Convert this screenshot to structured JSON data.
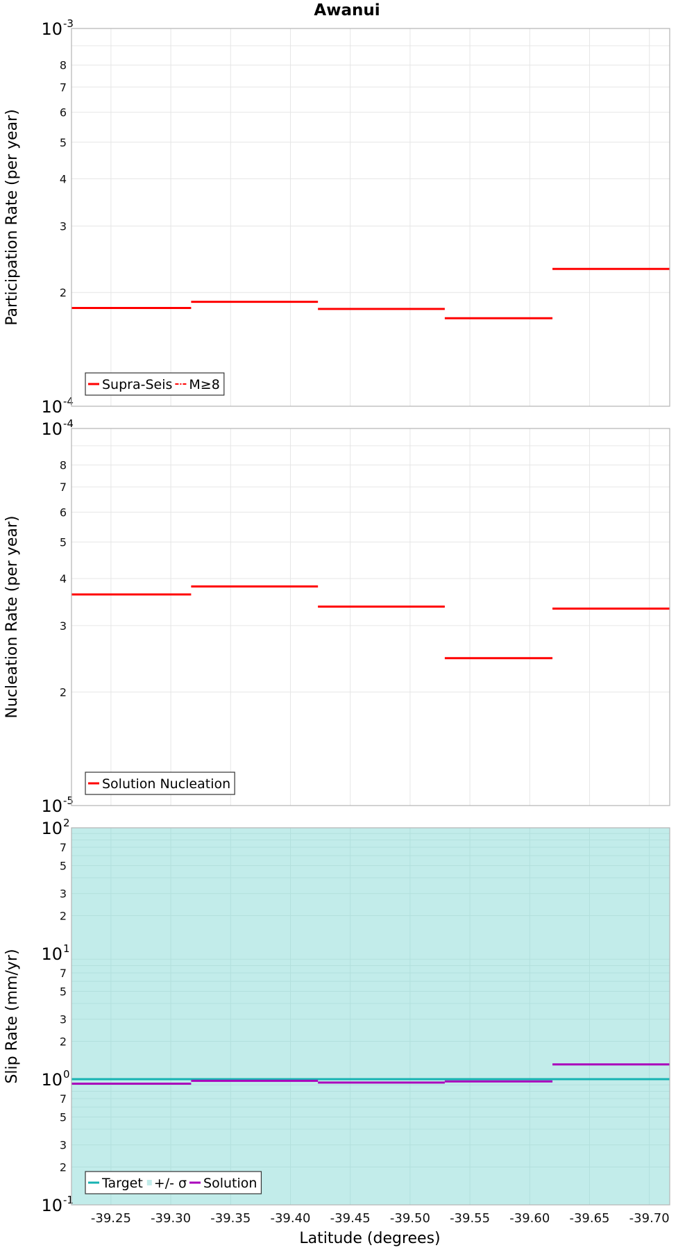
{
  "figure": {
    "title": "Awanui",
    "xlabel": "Latitude (degrees)"
  },
  "colors": {
    "supra_seis": "#ff0000",
    "m_ge_8": "#ff0000",
    "solution_nucleation": "#ff0000",
    "target": "#17b3b3",
    "sigma_band": "#c2ecea",
    "solution": "#aa00bb",
    "grid": "#e6e6e6",
    "axis_border": "#b4b4b4"
  },
  "chart_data": [
    {
      "type": "line",
      "panel": "participation",
      "ylabel": "Participation Rate (per year)",
      "yscale": "log",
      "ylim": [
        0.0001,
        0.001
      ],
      "y_tick_labels": [
        "2",
        "3",
        "4",
        "5",
        "6",
        "7",
        "8"
      ],
      "y_decade_labels": [
        {
          "base": "10",
          "exp": "-4"
        },
        {
          "base": "10",
          "exp": "-3"
        }
      ],
      "xlim": [
        -39.217,
        -39.717
      ],
      "x_ticks": [
        -39.25,
        -39.3,
        -39.35,
        -39.4,
        -39.45,
        -39.5,
        -39.55,
        -39.6,
        -39.65,
        -39.7
      ],
      "x_tick_labels": [
        "-39.25",
        "-39.30",
        "-39.35",
        "-39.40",
        "-39.45",
        "-39.50",
        "-39.55",
        "-39.60",
        "-39.65",
        "-39.70"
      ],
      "legend": {
        "position": "bottom-left",
        "entries": [
          {
            "label": "Supra-Seis",
            "style": "solid",
            "color_key": "supra_seis"
          },
          {
            "label": "M≥8",
            "style": "dash-dot",
            "color_key": "m_ge_8"
          }
        ]
      },
      "series": [
        {
          "name": "Supra-Seis",
          "segments": [
            {
              "x0": -39.217,
              "x1": -39.317,
              "y": 0.000182
            },
            {
              "x0": -39.317,
              "x1": -39.423,
              "y": 0.000189
            },
            {
              "x0": -39.423,
              "x1": -39.529,
              "y": 0.000181
            },
            {
              "x0": -39.529,
              "x1": -39.619,
              "y": 0.000171
            },
            {
              "x0": -39.619,
              "x1": -39.717,
              "y": 0.000231
            }
          ]
        }
      ]
    },
    {
      "type": "line",
      "panel": "nucleation",
      "ylabel": "Nucleation Rate (per year)",
      "yscale": "log",
      "ylim": [
        1e-05,
        0.0001
      ],
      "y_tick_labels": [
        "2",
        "3",
        "4",
        "5",
        "6",
        "7",
        "8"
      ],
      "y_decade_labels": [
        {
          "base": "10",
          "exp": "-5"
        },
        {
          "base": "10",
          "exp": "-4"
        }
      ],
      "xlim": [
        -39.217,
        -39.717
      ],
      "legend": {
        "position": "bottom-left",
        "entries": [
          {
            "label": "Solution Nucleation",
            "style": "solid",
            "color_key": "solution_nucleation"
          }
        ]
      },
      "series": [
        {
          "name": "Solution Nucleation",
          "segments": [
            {
              "x0": -39.217,
              "x1": -39.317,
              "y": 3.63e-05
            },
            {
              "x0": -39.317,
              "x1": -39.423,
              "y": 3.81e-05
            },
            {
              "x0": -39.423,
              "x1": -39.529,
              "y": 3.37e-05
            },
            {
              "x0": -39.529,
              "x1": -39.619,
              "y": 2.46e-05
            },
            {
              "x0": -39.619,
              "x1": -39.717,
              "y": 3.33e-05
            }
          ]
        }
      ]
    },
    {
      "type": "line",
      "panel": "slip",
      "ylabel": "Slip Rate (mm/yr)",
      "yscale": "log",
      "ylim": [
        0.1,
        100
      ],
      "y_tick_labels": [
        "2",
        "3",
        "5",
        "7"
      ],
      "y_decade_labels": [
        {
          "base": "10",
          "exp": "-1"
        },
        {
          "base": "10",
          "exp": "0"
        },
        {
          "base": "10",
          "exp": "1"
        },
        {
          "base": "10",
          "exp": "2"
        }
      ],
      "xlim": [
        -39.217,
        -39.717
      ],
      "sigma_band": [
        0.1,
        100
      ],
      "legend": {
        "position": "bottom-left",
        "entries": [
          {
            "label": "Target",
            "style": "solid",
            "color_key": "target"
          },
          {
            "label": "+/- σ",
            "style": "block",
            "color_key": "sigma_band"
          },
          {
            "label": "Solution",
            "style": "solid",
            "color_key": "solution"
          }
        ]
      },
      "series": [
        {
          "name": "Target",
          "segments": [
            {
              "x0": -39.217,
              "x1": -39.717,
              "y": 1.0
            }
          ]
        },
        {
          "name": "Solution",
          "segments": [
            {
              "x0": -39.217,
              "x1": -39.317,
              "y": 0.92
            },
            {
              "x0": -39.317,
              "x1": -39.423,
              "y": 0.97
            },
            {
              "x0": -39.423,
              "x1": -39.529,
              "y": 0.94
            },
            {
              "x0": -39.529,
              "x1": -39.619,
              "y": 0.96
            },
            {
              "x0": -39.619,
              "x1": -39.717,
              "y": 1.31
            }
          ]
        }
      ]
    }
  ]
}
